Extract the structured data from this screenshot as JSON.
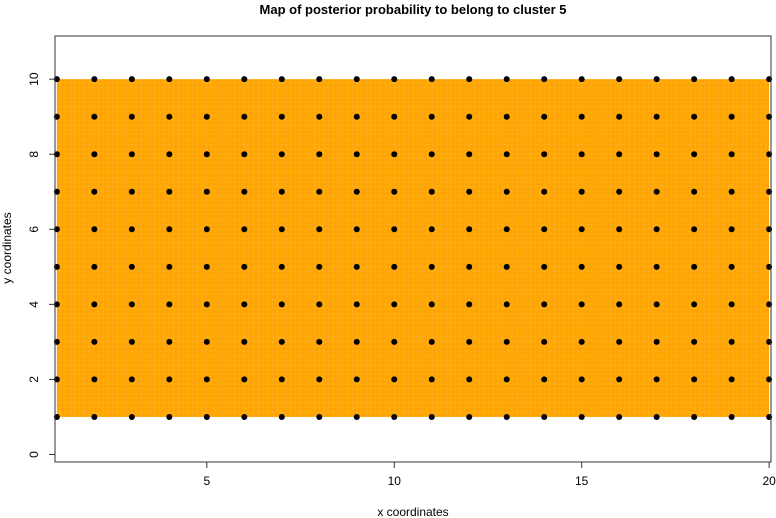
{
  "chart_data": {
    "type": "scatter",
    "title": "Map of posterior probability to belong to cluster  5",
    "xlabel": "x coordinates",
    "ylabel": "y coordinates",
    "xlim": [
      0.95,
      20.05
    ],
    "ylim": [
      -0.2,
      11.15
    ],
    "xticks": [
      5,
      10,
      15,
      20
    ],
    "yticks": [
      0,
      2,
      4,
      6,
      8,
      10
    ],
    "grid": false,
    "points_x": [
      1,
      2,
      3,
      4,
      5,
      6,
      7,
      8,
      9,
      10,
      11,
      12,
      13,
      14,
      15,
      16,
      17,
      18,
      19,
      20
    ],
    "points_y": [
      1,
      2,
      3,
      4,
      5,
      6,
      7,
      8,
      9,
      10
    ],
    "probability_region": {
      "x": [
        1,
        20
      ],
      "y": [
        1,
        10
      ],
      "color": "#FFA500"
    },
    "point_color": "#000000"
  }
}
